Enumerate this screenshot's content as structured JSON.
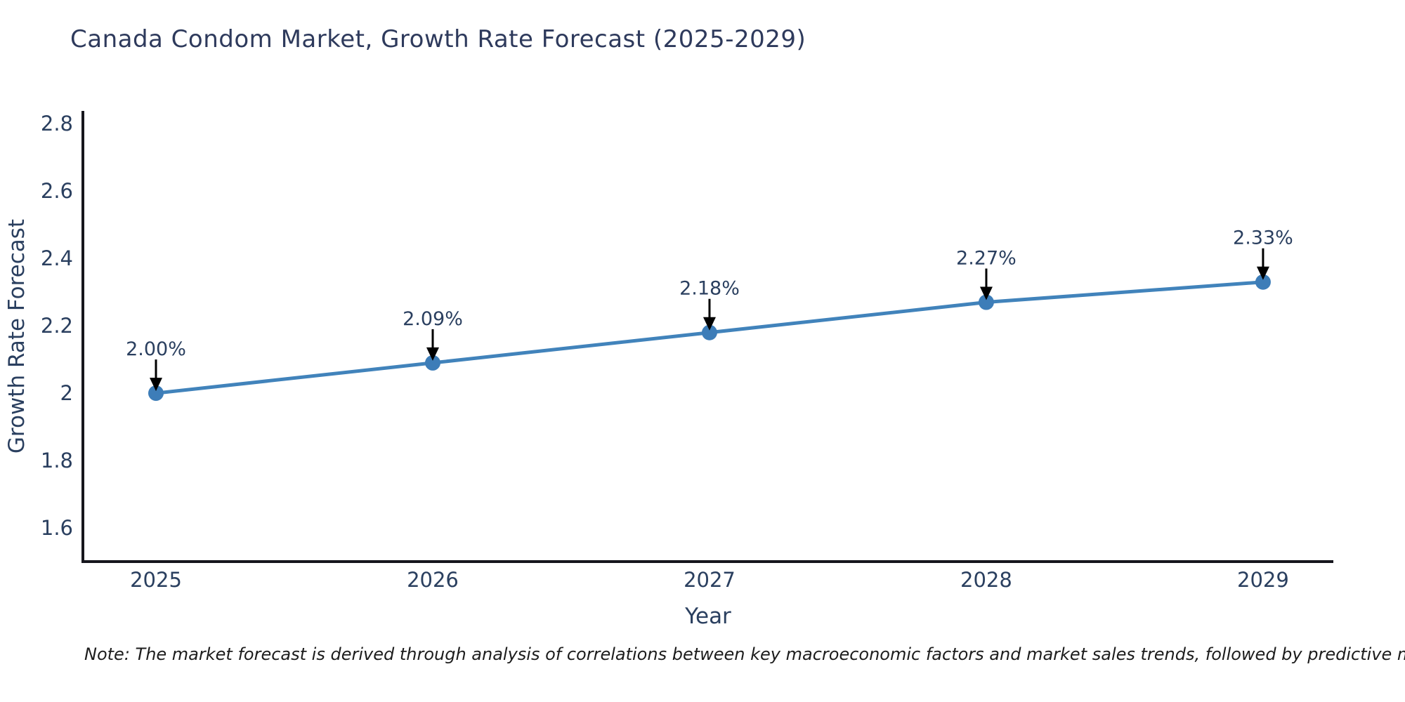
{
  "title": "Canada Condom Market, Growth Rate Forecast (2025-2029)",
  "note": "Note: The market forecast is derived through analysis of correlations between key macroeconomic factors and market sales trends, followed by predictive modeling to project future sales",
  "chart_data": {
    "type": "line",
    "title": "Canada Condom Market, Growth Rate Forecast (2025-2029)",
    "xlabel": "Year",
    "ylabel": "Growth Rate Forecast",
    "x": [
      2025,
      2026,
      2027,
      2028,
      2029
    ],
    "values": [
      2.0,
      2.09,
      2.18,
      2.27,
      2.33
    ],
    "point_labels": [
      "2.00%",
      "2.09%",
      "2.18%",
      "2.27%",
      "2.33%"
    ],
    "xticks": [
      "2025",
      "2026",
      "2027",
      "2028",
      "2029"
    ],
    "yticks": [
      "1.6",
      "1.8",
      "2",
      "2.2",
      "2.4",
      "2.6",
      "2.8"
    ],
    "ytick_values": [
      1.6,
      1.8,
      2.0,
      2.2,
      2.4,
      2.6,
      2.8
    ],
    "xlim": [
      2024.736,
      2029.254
    ],
    "ylim": [
      1.5,
      2.838
    ],
    "grid": false,
    "legend": false,
    "colors": {
      "line": "#4183bb",
      "marker": "#3d7db8",
      "axis": "#16161d",
      "text": "#2a3f5f",
      "annotation_arrow": "#000000"
    }
  }
}
